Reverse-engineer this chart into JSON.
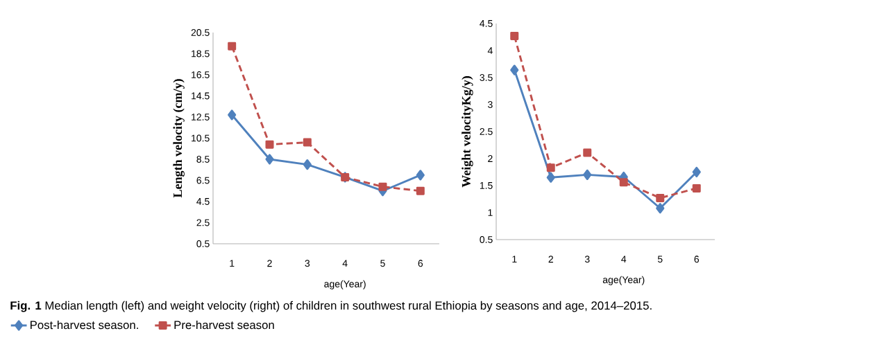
{
  "chart_data": [
    {
      "type": "line",
      "ylabel": "Length velocity (cm/y)",
      "xlabel": "age(Year)",
      "categories": [
        "1",
        "2",
        "3",
        "4",
        "5",
        "6"
      ],
      "series": [
        {
          "name": "Post-harvest season.",
          "color": "#4f81bd",
          "marker": "diamond",
          "line_style": "solid",
          "values": [
            12.7,
            8.5,
            8.0,
            6.8,
            5.5,
            7.0
          ]
        },
        {
          "name": "Pre-harvest season",
          "color": "#c0504d",
          "marker": "square",
          "line_style": "dashed",
          "values": [
            19.2,
            9.9,
            10.1,
            6.8,
            5.9,
            5.5
          ]
        }
      ],
      "ylim": [
        0.5,
        20.5
      ],
      "yticks": [
        0.5,
        2.5,
        4.5,
        6.5,
        8.5,
        10.5,
        12.5,
        14.5,
        16.5,
        18.5,
        20.5
      ],
      "grid": false,
      "legend": "bottom",
      "annotations": [
        "**Fig. 1** Median length (left) and weight velocity (right) of children in southwest rural Ethiopia by seasons and age, 2014–2015."
      ]
    },
    {
      "type": "line",
      "ylabel": "Weight velocityKg/y)",
      "xlabel": "age(Year)",
      "categories": [
        "1",
        "2",
        "3",
        "4",
        "5",
        "6"
      ],
      "series": [
        {
          "color": "#4f81bd",
          "marker": "diamond",
          "line_style": "solid",
          "values": [
            3.64,
            1.65,
            1.7,
            1.66,
            1.08,
            1.75
          ]
        },
        {
          "color": "#c0504d",
          "marker": "square",
          "line_style": "dashed",
          "values": [
            4.27,
            1.83,
            2.11,
            1.56,
            1.27,
            1.45
          ]
        }
      ],
      "ylim": [
        0.5,
        4.5
      ],
      "yticks": [
        0.5,
        1,
        1.5,
        2,
        2.5,
        3,
        3.5,
        4,
        4.5
      ],
      "grid": false
    }
  ]
}
